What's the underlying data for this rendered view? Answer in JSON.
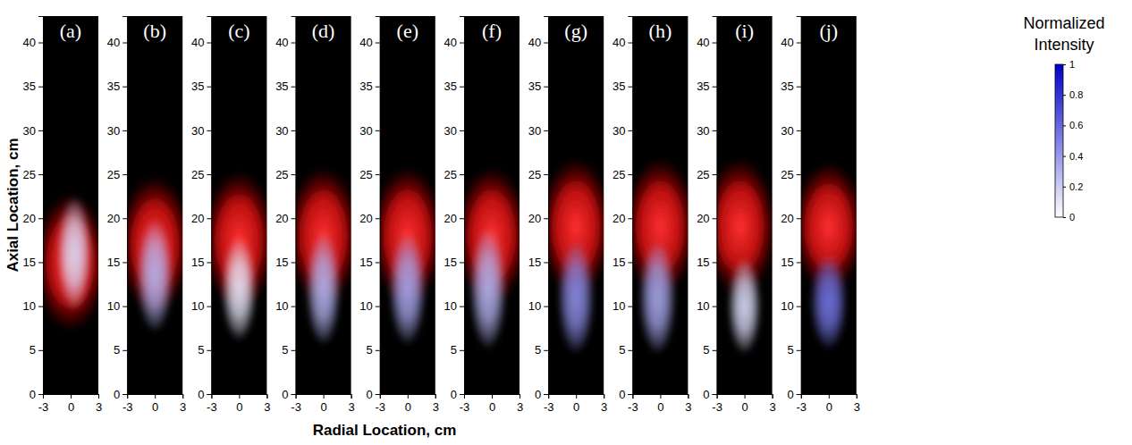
{
  "chart_data": {
    "type": "emission_image",
    "xlabel": "Radial Location, cm",
    "ylabel": "Axial Location, cm",
    "xlim": [
      -3,
      3
    ],
    "xticks": [
      -3,
      0,
      3
    ],
    "ylim": [
      0,
      43
    ],
    "yticks": [
      0,
      5,
      10,
      15,
      20,
      25,
      30,
      35,
      40
    ],
    "panels": [
      {
        "label": "(a)",
        "red": {
          "x": 0,
          "y": 15,
          "rx": 4,
          "ry": 8
        },
        "blue": {
          "x": 0.4,
          "y": 16,
          "rx": 1.9,
          "ry": 6.5,
          "intensity": 0.15
        }
      },
      {
        "label": "(b)",
        "red": {
          "x": 0,
          "y": 17,
          "rx": 4,
          "ry": 8
        },
        "blue": {
          "x": 0,
          "y": 13.5,
          "rx": 2,
          "ry": 6.5,
          "intensity": 0.3
        }
      },
      {
        "label": "(c)",
        "red": {
          "x": 0,
          "y": 17.5,
          "rx": 4,
          "ry": 8
        },
        "blue": {
          "x": 0,
          "y": 12,
          "rx": 1.9,
          "ry": 6,
          "intensity": 0.1
        }
      },
      {
        "label": "(d)",
        "red": {
          "x": 0,
          "y": 18,
          "rx": 4,
          "ry": 8
        },
        "blue": {
          "x": 0,
          "y": 12,
          "rx": 1.9,
          "ry": 6.5,
          "intensity": 0.3
        }
      },
      {
        "label": "(e)",
        "red": {
          "x": 0,
          "y": 18,
          "rx": 4,
          "ry": 8
        },
        "blue": {
          "x": 0,
          "y": 12,
          "rx": 2,
          "ry": 6.5,
          "intensity": 0.35
        }
      },
      {
        "label": "(f)",
        "red": {
          "x": 0,
          "y": 18,
          "rx": 4,
          "ry": 8
        },
        "blue": {
          "x": -0.4,
          "y": 12,
          "rx": 2,
          "ry": 7,
          "intensity": 0.3
        }
      },
      {
        "label": "(g)",
        "red": {
          "x": 0,
          "y": 19,
          "rx": 4,
          "ry": 8
        },
        "blue": {
          "x": 0,
          "y": 11,
          "rx": 2,
          "ry": 6.5,
          "intensity": 0.45
        }
      },
      {
        "label": "(h)",
        "red": {
          "x": 0,
          "y": 19,
          "rx": 4,
          "ry": 8
        },
        "blue": {
          "x": -0.3,
          "y": 11,
          "rx": 2,
          "ry": 6.5,
          "intensity": 0.35
        }
      },
      {
        "label": "(i)",
        "red": {
          "x": -0.5,
          "y": 19,
          "rx": 4,
          "ry": 8
        },
        "blue": {
          "x": 0,
          "y": 10,
          "rx": 1.8,
          "ry": 5.5,
          "intensity": 0.15
        }
      },
      {
        "label": "(j)",
        "red": {
          "x": 0,
          "y": 19,
          "rx": 4,
          "ry": 7.5
        },
        "blue": {
          "x": 0,
          "y": 10.5,
          "rx": 2,
          "ry": 5.5,
          "intensity": 0.55
        }
      }
    ],
    "colorbar": {
      "title": "Normalized Intensity",
      "range": [
        0,
        1
      ],
      "ticks": [
        0,
        0.2,
        0.4,
        0.6,
        0.8,
        1
      ]
    }
  }
}
